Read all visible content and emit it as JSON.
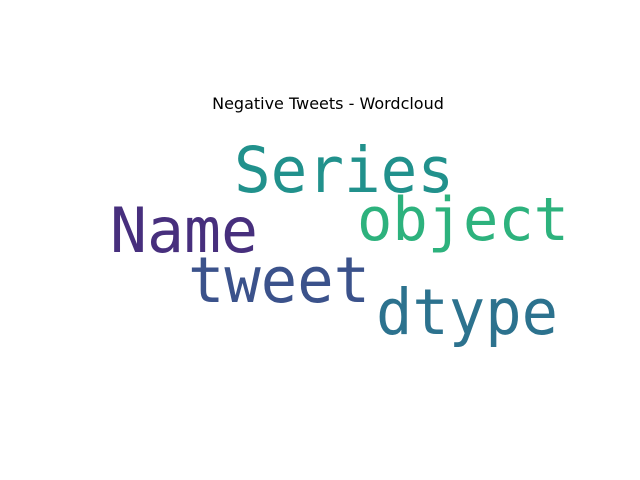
{
  "chart_data": {
    "type": "wordcloud",
    "title": "Negative Tweets - Wordcloud",
    "words": [
      {
        "text": "Series",
        "color": "#21918c"
      },
      {
        "text": "object",
        "color": "#2db27d"
      },
      {
        "text": "Name",
        "color": "#472f7d"
      },
      {
        "text": "tweet",
        "color": "#3b528b"
      },
      {
        "text": "dtype",
        "color": "#2c728e"
      }
    ]
  }
}
